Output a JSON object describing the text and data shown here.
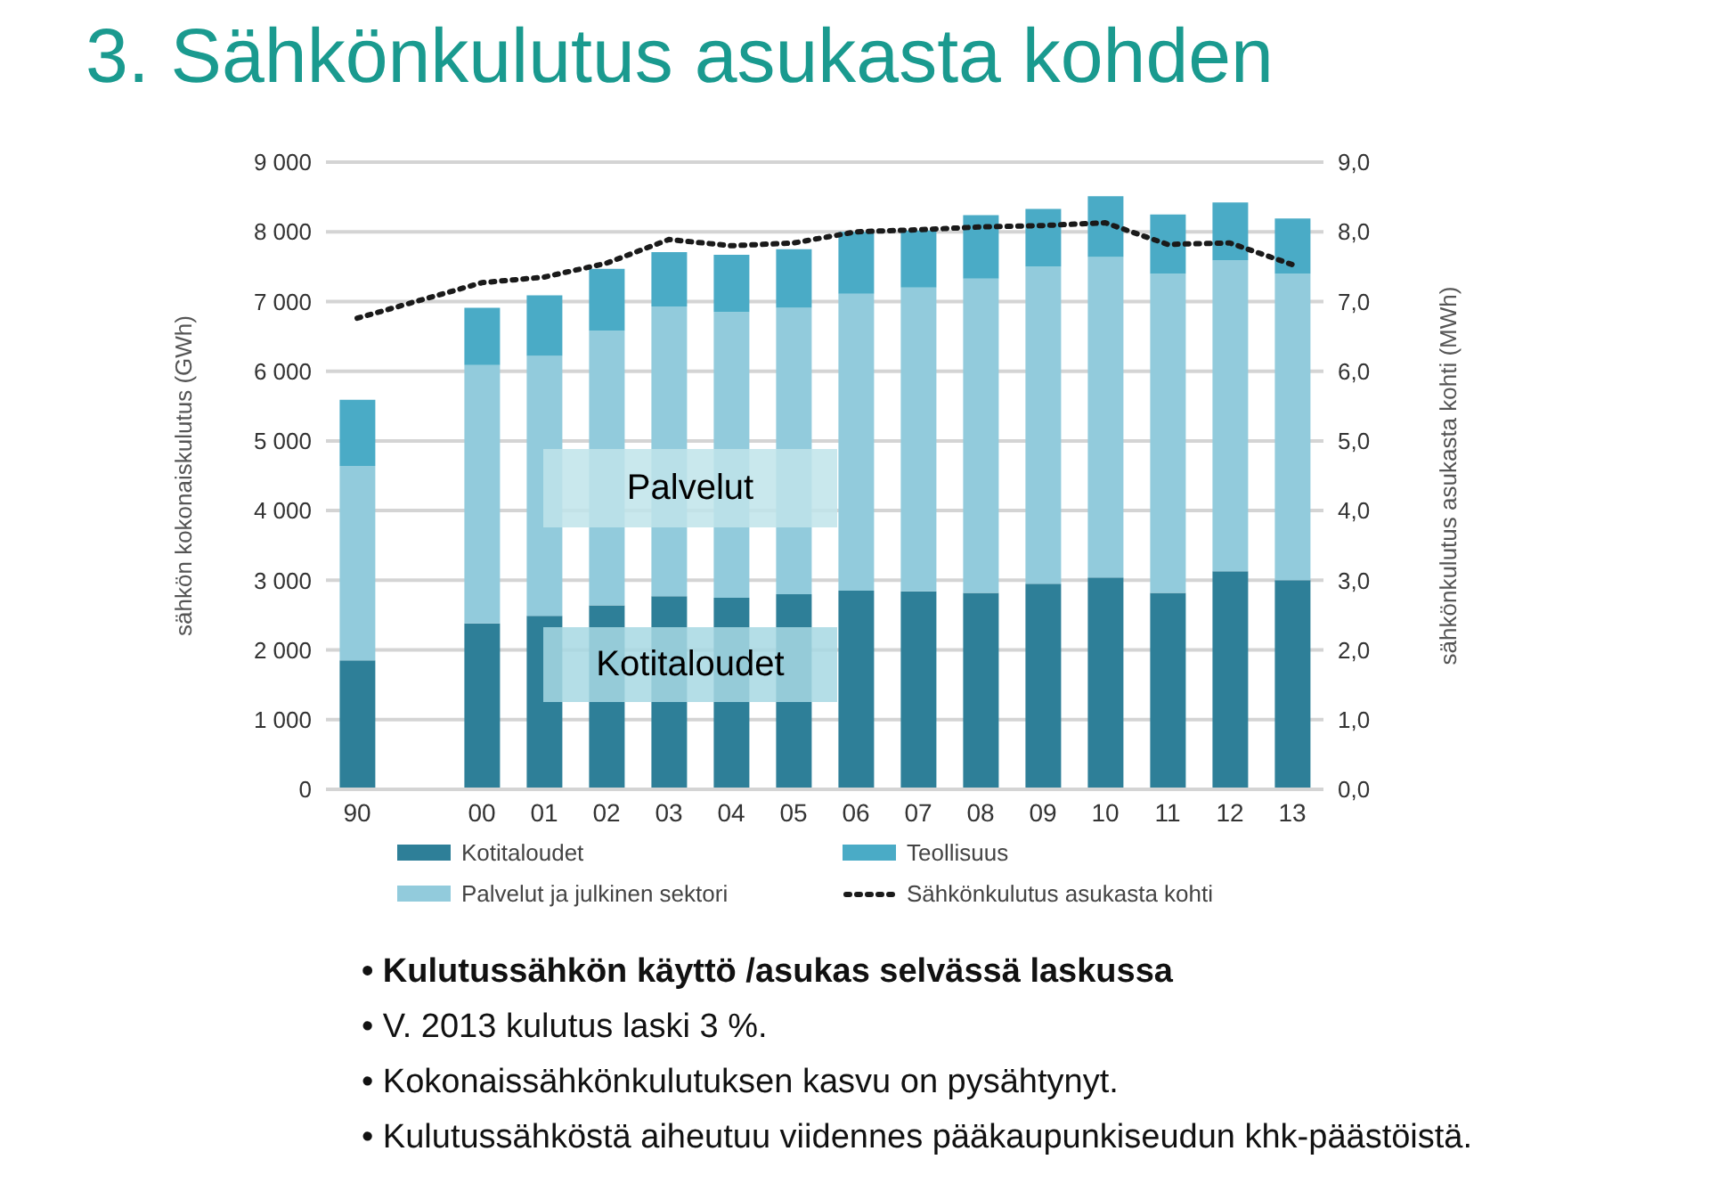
{
  "chart_data": {
    "type": "bar",
    "title": "3. Sähkönkulutus asukasta kohden",
    "stacked": true,
    "categories": [
      "90",
      null,
      "00",
      "01",
      "02",
      "03",
      "04",
      "05",
      "06",
      "07",
      "08",
      "09",
      "10",
      "11",
      "12",
      "13"
    ],
    "series": [
      {
        "name": "Kotitaloudet",
        "color": "#2e7f98",
        "values": [
          1850,
          null,
          2380,
          2490,
          2640,
          2770,
          2750,
          2800,
          2850,
          2840,
          2820,
          2950,
          3040,
          2820,
          3130,
          3000
        ]
      },
      {
        "name": "Palvelut ja julkinen sektori",
        "color": "#92cbdc",
        "values": [
          2790,
          null,
          3710,
          3730,
          3940,
          4160,
          4100,
          4110,
          4260,
          4360,
          4510,
          4550,
          4600,
          4580,
          4460,
          4400
        ]
      },
      {
        "name": "Teollisuus",
        "color": "#4aabc6",
        "values": [
          950,
          null,
          820,
          870,
          890,
          780,
          820,
          840,
          890,
          820,
          910,
          830,
          870,
          850,
          830,
          790
        ]
      },
      {
        "name": "Sähkönkulutus asukasta kohti",
        "type": "line",
        "axis": "y2",
        "color": "#1a1a1a",
        "line_style": "dotted",
        "marker": "none",
        "values": [
          6.76,
          null,
          7.27,
          7.35,
          7.55,
          7.89,
          7.8,
          7.84,
          8.0,
          8.03,
          8.07,
          8.09,
          8.13,
          7.82,
          7.84,
          7.53
        ]
      }
    ],
    "ylabel": "sähkön kokonaiskulutus (GWh)",
    "y2label": "sähkönkulutus asukasta kohti (MWh)",
    "ylim": [
      0,
      9000
    ],
    "yticks": [
      0,
      {
        "value": 1000,
        "label": "1 000"
      },
      {
        "value": 2000,
        "label": "2 000"
      },
      {
        "value": 3000,
        "label": "3 000"
      },
      {
        "value": 4000,
        "label": "4 000"
      },
      {
        "value": 5000,
        "label": "5 000"
      },
      {
        "value": 6000,
        "label": "6 000"
      },
      {
        "value": 7000,
        "label": "7 000"
      },
      {
        "value": 8000,
        "label": "8 000"
      },
      {
        "value": 9000,
        "label": "9 000"
      }
    ],
    "y2lim": [
      0,
      9
    ],
    "y2ticks": [
      {
        "value": 0,
        "label": "0,0"
      },
      {
        "value": 1,
        "label": "1,0"
      },
      {
        "value": 2,
        "label": "2,0"
      },
      {
        "value": 3,
        "label": "3,0"
      },
      {
        "value": 4,
        "label": "4,0"
      },
      {
        "value": 5,
        "label": "5,0"
      },
      {
        "value": 6,
        "label": "6,0"
      },
      {
        "value": 7,
        "label": "7,0"
      },
      {
        "value": 8,
        "label": "8,0"
      },
      {
        "value": 9,
        "label": "9,0"
      }
    ],
    "grid": "y",
    "legend": "bottom",
    "annotations": [
      "Palvelut",
      "Kotitaloudet",
      "• Kulutussähkön käyttö /asukas selvässä laskussa",
      "• V. 2013 kulutus laski 3 %.",
      "• Kokonaissähkönkulutuksen kasvu on pysähtynyt.",
      "• Kulutussähköstä aiheutuu viidennes pääkaupunkiseudun khk-päästöistä."
    ]
  }
}
